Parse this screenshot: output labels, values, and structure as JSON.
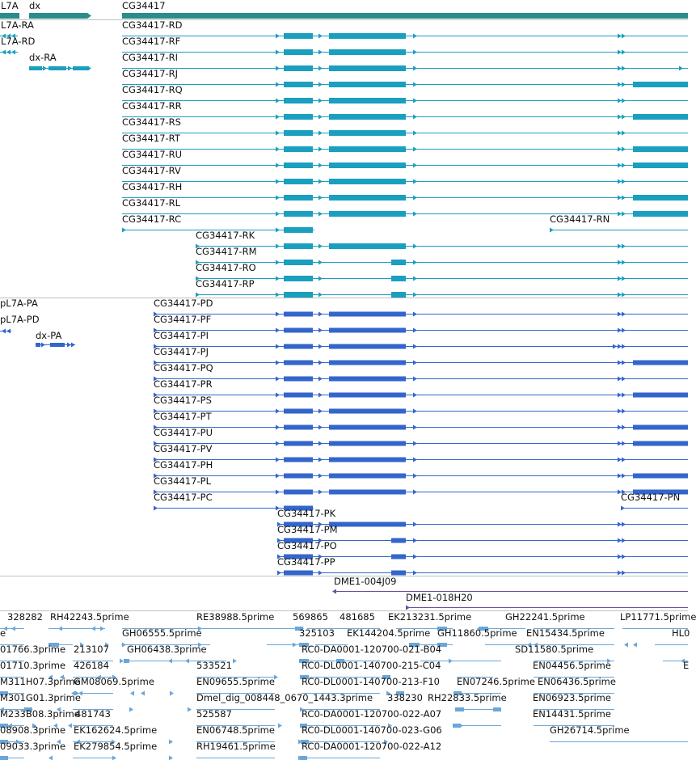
{
  "colors": {
    "gene_track": "#2a8c8c",
    "transcript": "#1a9fbf",
    "protein": "#3366cc",
    "bac": "#6a4d9f",
    "est": "#6aa6d8",
    "divider": "#c0c0c0"
  },
  "gene_track": {
    "genes": [
      "L7A",
      "dx",
      "CG34417"
    ]
  },
  "transcripts": {
    "labels": [
      "L7A-RA",
      "L7A-RD",
      "dx-RA",
      "CG34417-RD",
      "CG34417-RF",
      "CG34417-RI",
      "CG34417-RJ",
      "CG34417-RQ",
      "CG34417-RR",
      "CG34417-RS",
      "CG34417-RT",
      "CG34417-RU",
      "CG34417-RV",
      "CG34417-RH",
      "CG34417-RL",
      "CG34417-RC",
      "CG34417-RN",
      "CG34417-RK",
      "CG34417-RM",
      "CG34417-RO",
      "CG34417-RP"
    ]
  },
  "proteins": {
    "labels": [
      "pL7A-PA",
      "pL7A-PD",
      "dx-PA",
      "CG34417-PD",
      "CG34417-PF",
      "CG34417-PI",
      "CG34417-PJ",
      "CG34417-PQ",
      "CG34417-PR",
      "CG34417-PS",
      "CG34417-PT",
      "CG34417-PU",
      "CG34417-PV",
      "CG34417-PH",
      "CG34417-PL",
      "CG34417-PC",
      "CG34417-PN",
      "CG34417-PK",
      "CG34417-PM",
      "CG34417-PO",
      "CG34417-PP"
    ]
  },
  "bac_clones": {
    "labels": [
      "DME1-004J09",
      "DME1-018H20"
    ]
  },
  "est_reads": {
    "labels": [
      "328282",
      "RH42243.5prime",
      "RE38988.5prime",
      "569865",
      "481685",
      "EK213231.5prime",
      "GH22241.5prime",
      "LP11771.5prime",
      "e",
      "GH06555.5prime",
      "325103",
      "EK144204.5prime",
      "GH11860.5prime",
      "EN15434.5prime",
      "HL0",
      "01766.3prime",
      "213107",
      "GH06438.3prime",
      "RC0-DA0001-120700-021-B04",
      "SD11580.5prime",
      "01710.3prime",
      "426184",
      "533521",
      "RC0-DL0001-140700-215-C04",
      "EN04456.5prime",
      "E",
      "M311H07.3prime",
      "GM08069.5prime",
      "EN09655.5prime",
      "RC0-DL0001-140700-213-F10",
      "EN07246.5prime",
      "EN06436.5prime",
      "M301G01.3prime",
      "Dmel_dig_008448_0670_1443.3prime",
      "338230",
      "RH22833.5prime",
      "EN06923.5prime",
      "M233B08.3prime",
      "481743",
      "525587",
      "RC0-DA0001-120700-022-A07",
      "EN14431.5prime",
      "08908.3prime",
      "EK162624.5prime",
      "EN06748.5prime",
      "RC0-DL0001-140700-023-G06",
      "GH26714.5prime",
      "09033.3prime",
      "EK279854.5prime",
      "RH19461.5prime",
      "RC0-DA0001-120700-022-A12"
    ]
  }
}
